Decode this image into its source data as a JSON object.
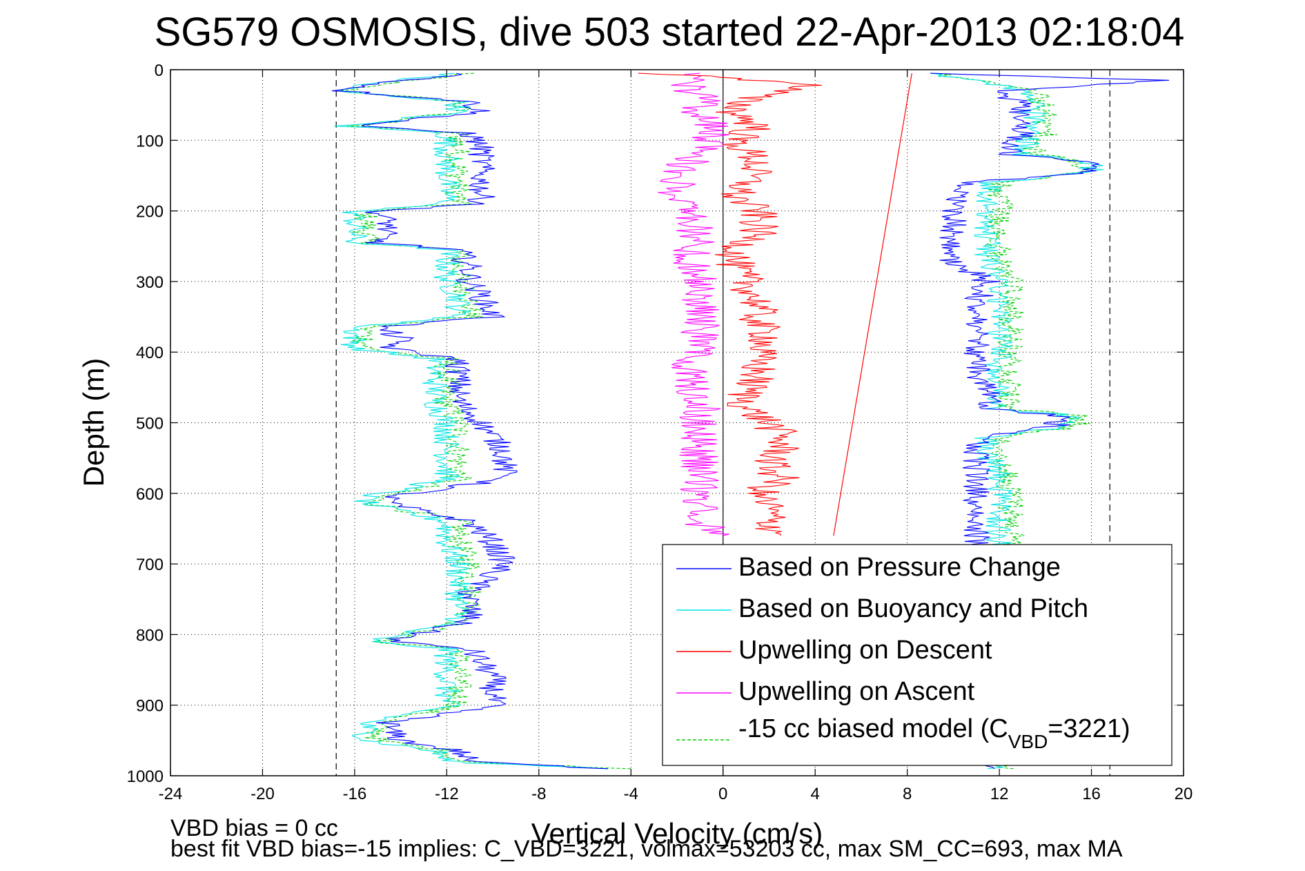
{
  "chart_data": {
    "type": "line",
    "title": "SG579 OSMOSIS, dive 503 started 22-Apr-2013 02:18:04",
    "xlabel": "Vertical Velocity (cm/s)",
    "ylabel": "Depth (m)",
    "xlim": [
      -24,
      20
    ],
    "ylim": [
      0,
      1000
    ],
    "y_reversed": true,
    "grid": true,
    "xticks": [
      "-24",
      "-20",
      "-16",
      "-12",
      "-8",
      "-4",
      "0",
      "4",
      "8",
      "12",
      "16",
      "20"
    ],
    "yticks": [
      "0",
      "100",
      "200",
      "300",
      "400",
      "500",
      "600",
      "700",
      "800",
      "900",
      "1000"
    ],
    "reference_lines": {
      "dashed_x": [
        -16.8,
        16.8
      ],
      "solid_x": [
        0
      ]
    },
    "legend_placement": "bottom-right",
    "series": [
      {
        "name": "Based on Pressure Change",
        "color": "#0000ff",
        "style": "solid",
        "descent": {
          "depth": [
            5,
            20,
            30,
            45,
            60,
            80,
            90,
            110,
            130,
            150,
            170,
            190,
            200,
            220,
            245,
            255,
            280,
            300,
            320,
            350,
            365,
            380,
            395,
            410,
            440,
            470,
            500,
            540,
            580,
            605,
            615,
            640,
            670,
            700,
            740,
            780,
            810,
            820,
            860,
            900,
            925,
            935,
            950,
            965,
            980,
            990
          ],
          "velocity": [
            -11,
            -15,
            -16.5,
            -11,
            -10.5,
            -16,
            -11,
            -10.5,
            -10.5,
            -10.5,
            -10.5,
            -10.5,
            -15,
            -14.5,
            -15,
            -11.5,
            -11,
            -11,
            -10.5,
            -10,
            -15,
            -14,
            -14.5,
            -11.5,
            -11.5,
            -11.5,
            -10.5,
            -9.5,
            -9.5,
            -14.5,
            -14.5,
            -11,
            -10,
            -9.5,
            -11,
            -11,
            -14.5,
            -11,
            -10,
            -10,
            -14.5,
            -14.5,
            -14,
            -11.5,
            -11,
            -5
          ]
        },
        "ascent": {
          "depth": [
            990,
            960,
            930,
            900,
            860,
            820,
            780,
            740,
            700,
            670,
            640,
            610,
            580,
            540,
            520,
            505,
            490,
            480,
            460,
            430,
            400,
            360,
            330,
            300,
            270,
            240,
            210,
            180,
            160,
            145,
            130,
            120,
            110,
            90,
            70,
            50,
            30,
            15,
            5
          ],
          "velocity": [
            12,
            11,
            11,
            11,
            11,
            11,
            11,
            11,
            11,
            11,
            11,
            11,
            11,
            11,
            11,
            14.5,
            14.5,
            11.5,
            11.5,
            11,
            11,
            11,
            11,
            11.5,
            10,
            10,
            10,
            10,
            10.5,
            16,
            16,
            12.5,
            12.5,
            13,
            13,
            13,
            12,
            19,
            9
          ]
        }
      },
      {
        "name": "Based on Buoyancy and Pitch",
        "color": "#00e5e5",
        "style": "solid",
        "descent": {
          "depth": [
            5,
            20,
            30,
            45,
            60,
            80,
            90,
            110,
            130,
            150,
            170,
            190,
            200,
            220,
            245,
            255,
            280,
            300,
            320,
            350,
            365,
            380,
            395,
            410,
            440,
            470,
            500,
            540,
            580,
            605,
            615,
            640,
            670,
            700,
            740,
            780,
            810,
            820,
            860,
            900,
            925,
            935,
            950,
            965,
            980,
            990
          ],
          "velocity": [
            -11.5,
            -15.5,
            -17,
            -11.5,
            -11.5,
            -16.5,
            -12,
            -12,
            -12,
            -12,
            -12,
            -12,
            -16,
            -16,
            -16,
            -12,
            -12,
            -12,
            -11.5,
            -11.5,
            -16,
            -16,
            -16,
            -12.5,
            -12.5,
            -12.5,
            -12,
            -12,
            -12,
            -15.5,
            -15.5,
            -12,
            -12,
            -11.5,
            -11.5,
            -11.5,
            -15.5,
            -12,
            -12,
            -12,
            -15.5,
            -15.5,
            -15.5,
            -12.5,
            -12,
            -5
          ]
        },
        "ascent": {
          "depth": [
            990,
            960,
            930,
            900,
            860,
            820,
            780,
            740,
            700,
            670,
            640,
            610,
            580,
            540,
            520,
            505,
            490,
            480,
            460,
            430,
            400,
            360,
            330,
            300,
            270,
            240,
            210,
            180,
            160,
            145,
            130,
            120,
            110,
            90,
            70,
            50,
            30,
            15,
            5
          ],
          "velocity": [
            12,
            12,
            12,
            12,
            12,
            12,
            12,
            12,
            12,
            12,
            12,
            12,
            12,
            11.5,
            11.5,
            15,
            15,
            12,
            12,
            12,
            12,
            12,
            12,
            12,
            11.5,
            11.5,
            11.5,
            11.5,
            11.5,
            16,
            16,
            13,
            13,
            13.5,
            13.5,
            13.5,
            13,
            11,
            9
          ]
        }
      },
      {
        "name": "Upwelling on Descent",
        "color": "#ff0000",
        "style": "solid",
        "descent": {
          "depth": [
            5,
            20,
            40,
            60,
            80,
            100,
            130,
            160,
            180,
            200,
            230,
            260,
            280,
            300,
            330,
            360,
            380,
            400,
            430,
            460,
            480,
            500,
            520,
            540,
            560,
            580,
            600,
            620,
            640,
            660
          ],
          "velocity": [
            -3,
            4,
            1,
            0.5,
            1.5,
            0.5,
            1.5,
            1,
            0.5,
            1.5,
            1.5,
            0.5,
            0.5,
            1,
            1.5,
            1.5,
            2,
            1.5,
            1.5,
            1,
            1,
            2,
            2.5,
            2.5,
            2,
            2.5,
            1.5,
            2,
            2,
            2.5
          ]
        }
      },
      {
        "name": "Upwelling on Ascent",
        "color": "#ff00ff",
        "style": "solid",
        "ascent": {
          "depth": [
            660,
            630,
            600,
            570,
            540,
            510,
            480,
            450,
            420,
            390,
            360,
            330,
            300,
            270,
            240,
            210,
            180,
            160,
            140,
            120,
            100,
            80,
            60,
            40,
            20,
            5
          ],
          "velocity": [
            -0.5,
            -1,
            -1,
            -1,
            -1,
            -1,
            -1,
            -1.5,
            -1.5,
            -1,
            -1,
            -1,
            -1,
            -1.5,
            -1,
            -1.5,
            -2,
            -2,
            -2,
            -1,
            -0.5,
            -0.5,
            -1,
            -1,
            -1.5,
            -1
          ]
        }
      },
      {
        "name": "-15 cc biased model (C_VBD=3221)",
        "color": "#00cc00",
        "style": "dashed",
        "descent": {
          "depth": [
            5,
            20,
            30,
            45,
            60,
            80,
            90,
            110,
            130,
            150,
            170,
            190,
            200,
            220,
            245,
            255,
            280,
            300,
            320,
            350,
            365,
            380,
            395,
            410,
            440,
            470,
            500,
            540,
            580,
            605,
            615,
            640,
            670,
            700,
            740,
            780,
            810,
            820,
            860,
            900,
            925,
            935,
            950,
            965,
            980,
            990
          ],
          "velocity": [
            -11,
            -15,
            -16.5,
            -11.5,
            -11.5,
            -16,
            -11.5,
            -11.5,
            -11.5,
            -11.5,
            -11.5,
            -11.5,
            -15.5,
            -15.5,
            -15.5,
            -11.5,
            -11.5,
            -11.5,
            -11,
            -11,
            -15.5,
            -15.5,
            -15.5,
            -12,
            -12,
            -12,
            -11.5,
            -11.5,
            -11.5,
            -15,
            -15,
            -11.5,
            -11.5,
            -11,
            -11,
            -11,
            -15,
            -11.5,
            -11.5,
            -11.5,
            -15,
            -15,
            -15,
            -12,
            -11.5,
            -4
          ]
        },
        "ascent": {
          "depth": [
            990,
            960,
            930,
            900,
            860,
            820,
            780,
            740,
            700,
            670,
            640,
            610,
            580,
            540,
            520,
            505,
            490,
            480,
            460,
            430,
            400,
            360,
            330,
            300,
            270,
            240,
            210,
            180,
            160,
            145,
            130,
            120,
            110,
            90,
            70,
            50,
            30,
            15,
            5
          ],
          "velocity": [
            12.5,
            12.5,
            12.5,
            12.5,
            12.5,
            12.5,
            12.5,
            12.5,
            12.5,
            12.5,
            12.5,
            12.5,
            12.5,
            12,
            12,
            15.5,
            15.5,
            12.5,
            12.5,
            12.5,
            12.5,
            12.5,
            12.5,
            12.5,
            12,
            12,
            12,
            12,
            12,
            15.5,
            15.5,
            13.5,
            13.5,
            14,
            14,
            14,
            13.5,
            11,
            9
          ]
        }
      }
    ],
    "annotation_line": {
      "color": "#ff0000",
      "points": [
        {
          "x": 8.2,
          "depth": 5
        },
        {
          "x": 4.8,
          "depth": 660
        }
      ]
    },
    "legend": [
      {
        "label": "Based on Pressure Change",
        "color": "#0000ff",
        "style": "solid"
      },
      {
        "label": "Based on Buoyancy and Pitch",
        "color": "#00e5e5",
        "style": "solid"
      },
      {
        "label": "Upwelling on Descent",
        "color": "#ff0000",
        "style": "solid"
      },
      {
        "label": "Upwelling on Ascent",
        "color": "#ff00ff",
        "style": "solid"
      },
      {
        "label_main": "-15 cc biased model (C",
        "label_sub": "VBD",
        "label_tail": "=3221)",
        "color": "#00cc00",
        "style": "dashed"
      }
    ]
  },
  "notes": {
    "line1": "VBD bias = 0 cc",
    "line2": "best fit VBD bias=-15 implies: C_VBD=3221, volmax=53203 cc, max SM_CC=693, max MA"
  }
}
